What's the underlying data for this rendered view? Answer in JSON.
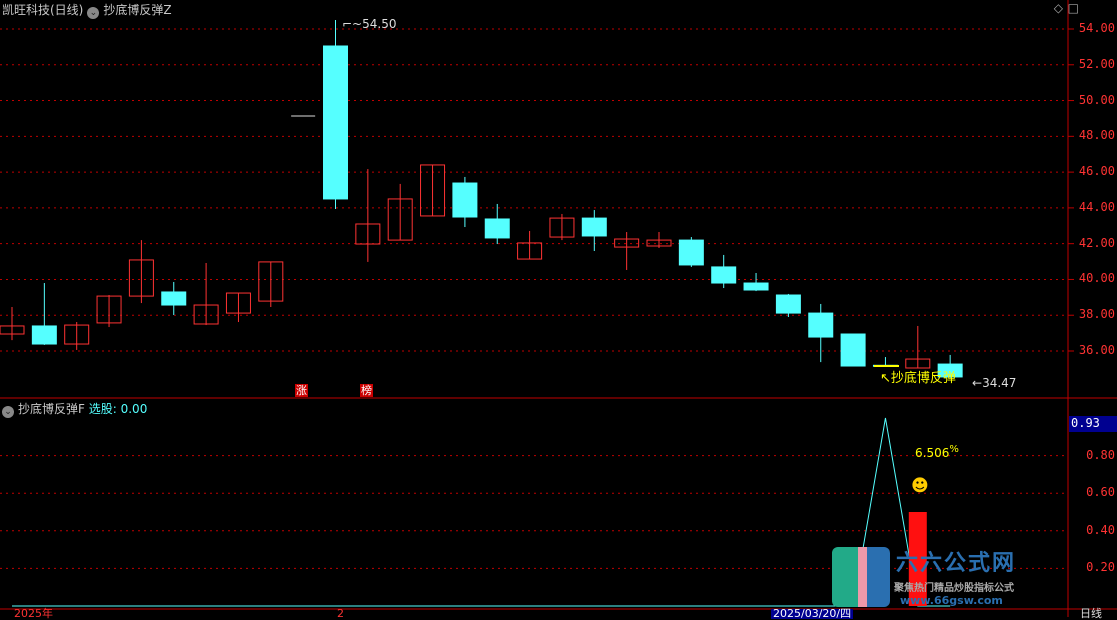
{
  "header": {
    "stock": "凯旺科技(日线)",
    "indicator": "抄底博反弹Z",
    "icons": [
      "diamond-icon",
      "square-icon"
    ]
  },
  "price_axis": [
    "54.00",
    "52.00",
    "50.00",
    "48.00",
    "46.00",
    "44.00",
    "42.00",
    "40.00",
    "38.00",
    "36.00"
  ],
  "annotations": {
    "high_label": "54.50",
    "low_label": "34.47",
    "signal_label": "抄底博反弹",
    "mark1": "涨",
    "mark2": "榜"
  },
  "sub": {
    "indicator": "抄底博反弹F",
    "field": "选股:",
    "value": "0.00",
    "current": "0.93",
    "pct": "6.506",
    "pct_unit": "%",
    "axis": [
      "0.80",
      "0.60",
      "0.40",
      "0.20"
    ]
  },
  "xaxis": {
    "start": "2025年",
    "mid": "2",
    "cursor": "2025/03/20/四",
    "period": "日线"
  },
  "logo": {
    "name": "六六公式网",
    "slogan": "聚焦热门精品炒股指标公式",
    "url": "www.66gsw.com"
  },
  "colors": {
    "up": "#ff3333",
    "down": "#55ffff",
    "grid": "#c00000",
    "signal": "#ffff00"
  },
  "chart_data": {
    "type": "candlestick",
    "ylim": [
      34,
      54.5
    ],
    "candles": [
      [
        36.95,
        38.46,
        36.61,
        37.4
      ],
      [
        37.4,
        39.8,
        36.34,
        36.39
      ],
      [
        36.39,
        37.62,
        36.06,
        37.45
      ],
      [
        37.57,
        39.13,
        37.34,
        39.07
      ],
      [
        39.07,
        42.2,
        38.68,
        41.09
      ],
      [
        39.3,
        39.86,
        38.01,
        38.57
      ],
      [
        37.51,
        40.92,
        37.45,
        38.57
      ],
      [
        38.12,
        39.24,
        37.62,
        39.24
      ],
      [
        38.79,
        40.98,
        38.46,
        40.98
      ],
      [
        49.14,
        49.14,
        49.14,
        49.14
      ],
      [
        53.05,
        54.5,
        43.94,
        44.5
      ],
      [
        41.98,
        46.17,
        40.98,
        43.1
      ],
      [
        42.2,
        45.34,
        42.2,
        44.5
      ],
      [
        43.55,
        46.4,
        43.55,
        46.4
      ],
      [
        45.39,
        45.73,
        42.93,
        43.49
      ],
      [
        43.38,
        44.22,
        41.98,
        42.32
      ],
      [
        41.14,
        42.71,
        41.14,
        42.04
      ],
      [
        42.37,
        43.66,
        42.2,
        43.43
      ],
      [
        43.43,
        43.88,
        41.59,
        42.43
      ],
      [
        41.81,
        42.65,
        40.53,
        42.26
      ],
      [
        41.87,
        42.65,
        41.76,
        42.2
      ],
      [
        42.2,
        42.37,
        40.7,
        40.81
      ],
      [
        40.7,
        41.37,
        39.52,
        39.8
      ],
      [
        39.8,
        40.36,
        39.35,
        39.41
      ],
      [
        39.13,
        39.19,
        37.9,
        38.12
      ],
      [
        38.12,
        38.63,
        35.38,
        36.78
      ],
      [
        36.95,
        36.95,
        35.16,
        35.16
      ],
      [
        35.2,
        35.66,
        35.15,
        35.15
      ],
      [
        35.05,
        37.4,
        35.05,
        35.55
      ],
      [
        35.27,
        35.78,
        34.47,
        34.55
      ]
    ],
    "signal_line": [
      0,
      0,
      0,
      0,
      0,
      0,
      0,
      0,
      0,
      0,
      0,
      0,
      0,
      0,
      0,
      0,
      0,
      0,
      0,
      0,
      0,
      0,
      0,
      0,
      0,
      0,
      0,
      1,
      0,
      0
    ],
    "bar": {
      "index": 28,
      "value": 0.5
    },
    "sub_ylim": [
      0,
      1
    ]
  }
}
